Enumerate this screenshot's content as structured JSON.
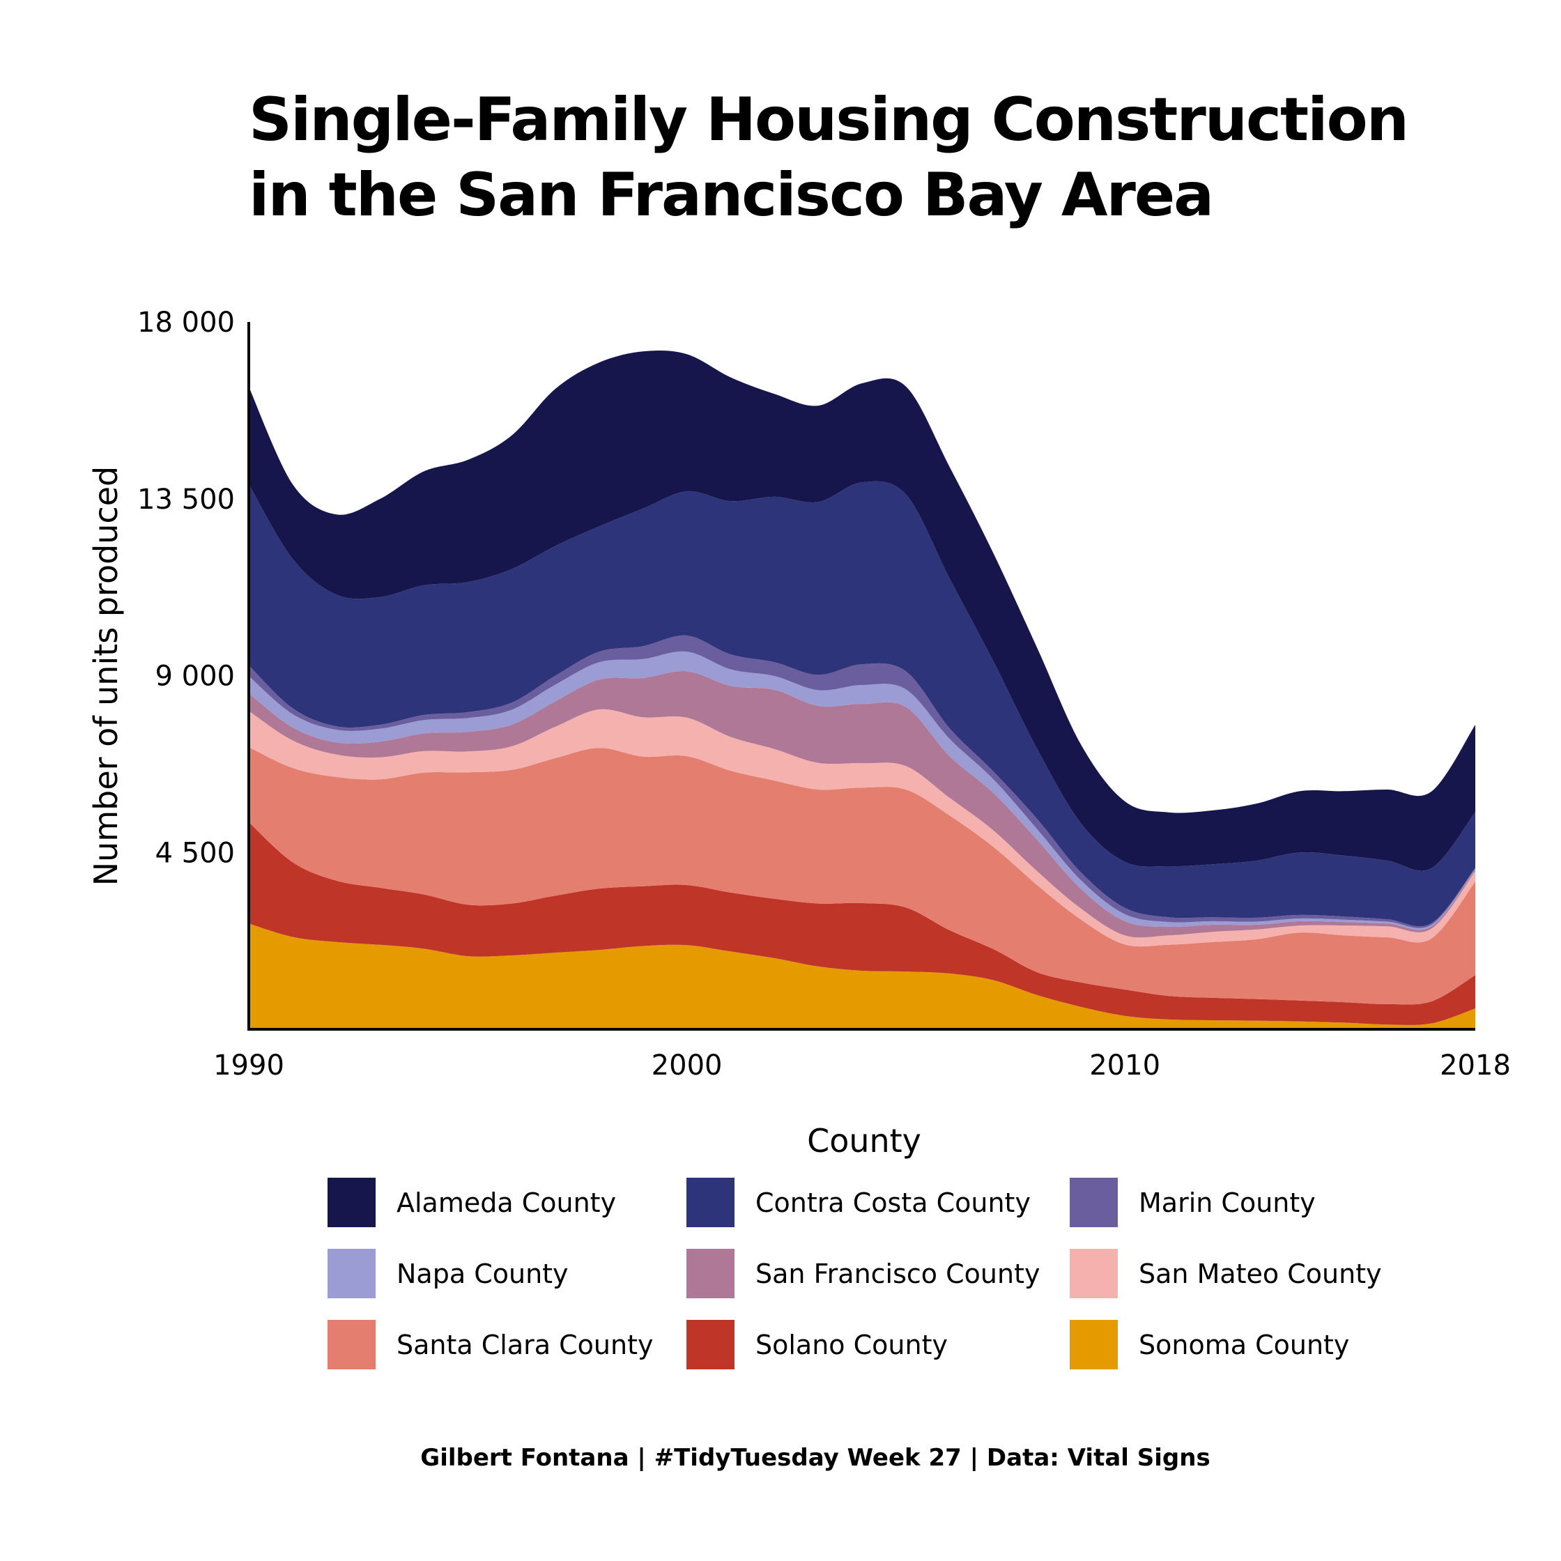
{
  "title": {
    "line1": "Single-Family Housing Construction",
    "line2": "in the San Francisco Bay Area"
  },
  "caption": "Gilbert Fontana | #TidyTuesday Week 27 | Data: Vital Signs",
  "legend": {
    "title": "County"
  },
  "chart_data": {
    "type": "area",
    "stacked": true,
    "smoothed": true,
    "title": "Single-Family Housing Construction in the San Francisco Bay Area",
    "xlabel": "",
    "ylabel": "Number of units produced",
    "xlim": [
      1990,
      2018
    ],
    "ylim": [
      0,
      18000
    ],
    "x_ticks": [
      1990,
      2000,
      2010,
      2018
    ],
    "x_tick_labels": [
      "1990",
      "2000",
      "2010",
      "2018"
    ],
    "y_ticks": [
      4500,
      9000,
      13500,
      18000
    ],
    "y_tick_labels": [
      "4 500",
      "9 000",
      "13 500",
      "18 000"
    ],
    "grid": false,
    "legend_title": "County",
    "legend_position": "bottom",
    "x": [
      1990,
      1991,
      1992,
      1993,
      1994,
      1995,
      1996,
      1997,
      1998,
      1999,
      2000,
      2001,
      2002,
      2003,
      2004,
      2005,
      2006,
      2007,
      2008,
      2009,
      2010,
      2011,
      2012,
      2013,
      2014,
      2015,
      2016,
      2017,
      2018
    ],
    "series": [
      {
        "name": "Sonoma County",
        "color": "#E59A00",
        "values": [
          2690,
          2350,
          2220,
          2150,
          2050,
          1860,
          1880,
          1950,
          2020,
          2120,
          2140,
          1980,
          1810,
          1600,
          1490,
          1470,
          1420,
          1250,
          870,
          570,
          340,
          250,
          230,
          220,
          200,
          170,
          120,
          150,
          530
        ]
      },
      {
        "name": "Solano County",
        "color": "#BF3528",
        "values": [
          2580,
          1900,
          1560,
          1450,
          1380,
          1310,
          1320,
          1450,
          1560,
          1520,
          1530,
          1500,
          1510,
          1600,
          1720,
          1630,
          1100,
          790,
          580,
          620,
          670,
          600,
          570,
          550,
          530,
          520,
          520,
          560,
          850
        ]
      },
      {
        "name": "Santa Clara County",
        "color": "#E47F70",
        "values": [
          1910,
          2400,
          2640,
          2760,
          3100,
          3370,
          3400,
          3500,
          3580,
          3300,
          3280,
          3100,
          3010,
          2900,
          2940,
          3000,
          2920,
          2600,
          2220,
          1600,
          1150,
          1300,
          1420,
          1520,
          1730,
          1700,
          1700,
          1600,
          2380
        ]
      },
      {
        "name": "San Mateo County",
        "color": "#F5B1AE",
        "values": [
          920,
          700,
          570,
          560,
          550,
          530,
          600,
          800,
          980,
          1000,
          980,
          860,
          800,
          680,
          620,
          600,
          450,
          420,
          350,
          280,
          230,
          240,
          260,
          250,
          180,
          250,
          280,
          250,
          260
        ]
      },
      {
        "name": "San Francisco County",
        "color": "#AF7897",
        "values": [
          450,
          330,
          310,
          400,
          450,
          500,
          550,
          650,
          760,
          1000,
          1180,
          1300,
          1510,
          1450,
          1510,
          1500,
          1060,
          950,
          800,
          500,
          360,
          220,
          180,
          120,
          110,
          90,
          70,
          60,
          40
        ]
      },
      {
        "name": "Napa County",
        "color": "#9C9CD4",
        "values": [
          440,
          340,
          320,
          330,
          340,
          350,
          380,
          420,
          440,
          480,
          500,
          420,
          350,
          400,
          480,
          450,
          440,
          350,
          270,
          220,
          180,
          120,
          90,
          80,
          70,
          60,
          50,
          40,
          20
        ]
      },
      {
        "name": "Marin County",
        "color": "#6B5E9E",
        "values": [
          270,
          150,
          90,
          100,
          130,
          150,
          180,
          230,
          270,
          330,
          410,
          380,
          350,
          390,
          530,
          460,
          270,
          200,
          260,
          200,
          160,
          120,
          100,
          100,
          90,
          80,
          60,
          40,
          30
        ]
      },
      {
        "name": "Contra Costa County",
        "color": "#2E347A",
        "values": [
          4610,
          3800,
          3350,
          3250,
          3300,
          3310,
          3400,
          3300,
          3190,
          3500,
          3670,
          3900,
          4210,
          4400,
          4630,
          4500,
          3810,
          2800,
          1780,
          1250,
          1170,
          1300,
          1350,
          1450,
          1590,
          1550,
          1490,
          1400,
          1420
        ]
      },
      {
        "name": "Alameda County",
        "color": "#16164D",
        "values": [
          2480,
          1900,
          2040,
          2500,
          2900,
          3110,
          3400,
          4000,
          4170,
          4000,
          3490,
          3150,
          2620,
          2450,
          2520,
          2750,
          2840,
          2750,
          2570,
          2000,
          1540,
          1370,
          1370,
          1450,
          1560,
          1640,
          1810,
          1950,
          2220
        ]
      }
    ]
  }
}
